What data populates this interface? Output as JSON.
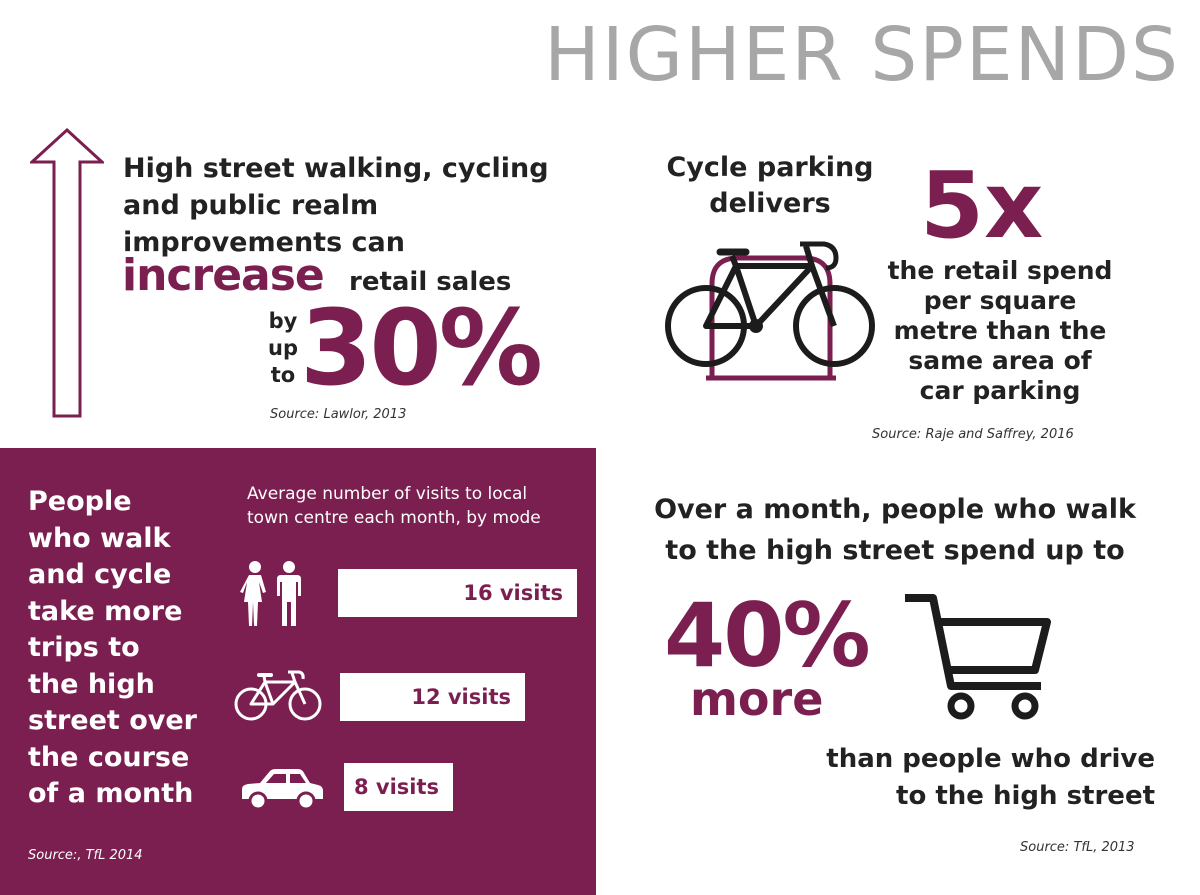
{
  "title": "HIGHER SPENDS",
  "colors": {
    "accent": "#7a1f4f",
    "title": "#a7a7a7",
    "text": "#222222"
  },
  "top_left": {
    "lines": [
      "High street walking, cycling",
      "and public realm",
      "improvements can"
    ],
    "emphasis": "increase",
    "after_emphasis": "retail sales",
    "by": "by",
    "up": "up",
    "to": "to",
    "value": "30%",
    "source": "Source: Lawlor, 2013",
    "icon": "up-arrow-icon"
  },
  "top_right": {
    "intro_lines": [
      "Cycle parking",
      "delivers"
    ],
    "value": "5x",
    "desc_lines": [
      "the retail spend",
      "per square",
      "metre than the",
      "same area of",
      "car parking"
    ],
    "source": "Source: Raje and Saffrey, 2016",
    "icon": "bicycle-parking-icon"
  },
  "bottom_left": {
    "text_lines": [
      "People",
      "who walk",
      "and cycle",
      "take more",
      "trips to",
      "the high",
      "street over",
      "the course",
      "of a month"
    ],
    "chart_title_lines": [
      "Average number of visits to local",
      "town centre each month, by mode"
    ],
    "source": "Source:, TfL 2014"
  },
  "chart_data": {
    "type": "bar",
    "title": "Average number of visits to local town centre each month, by mode",
    "categories": [
      "walking",
      "cycling",
      "car"
    ],
    "values": [
      16,
      12,
      8
    ],
    "labels": [
      "16 visits",
      "12 visits",
      "8 visits"
    ],
    "icons": [
      "pedestrians-icon",
      "bicycle-icon",
      "car-icon"
    ]
  },
  "bottom_right": {
    "top_lines": [
      "Over a month, people who walk",
      "to the high street spend up to"
    ],
    "value": "40%",
    "more": "more",
    "bottom_lines": [
      "than people who drive",
      "to the high street"
    ],
    "source": "Source: TfL, 2013",
    "icon": "shopping-cart-icon"
  }
}
